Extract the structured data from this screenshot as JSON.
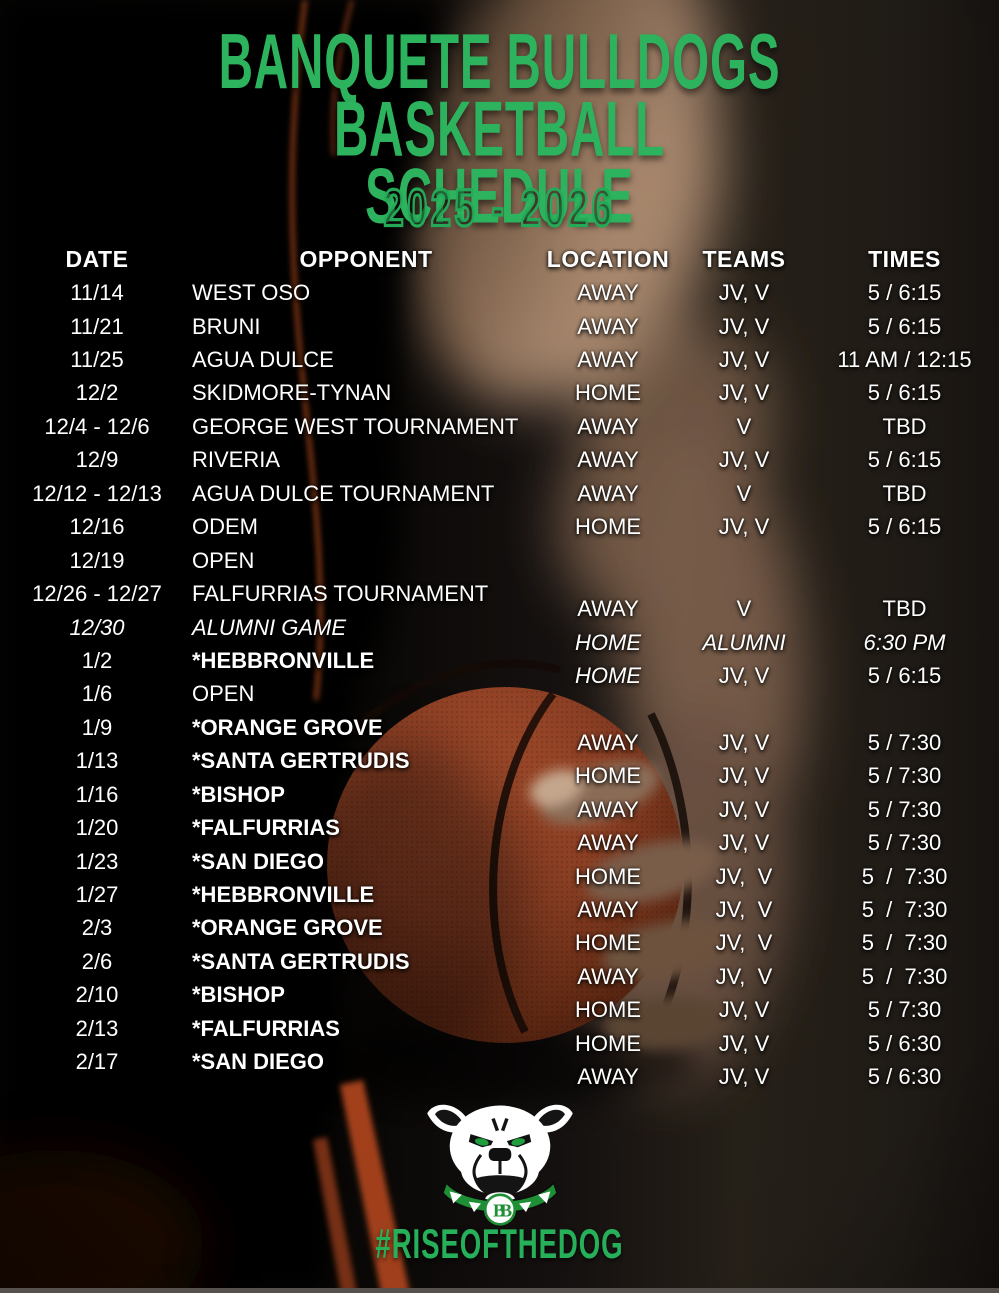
{
  "poster": {
    "title_line1": "BANQUETE BULLDOGS BASKETBALL",
    "title_line2": "SCHEDULE",
    "season": "2025 - 2026",
    "hashtag": "#RISEOFTHEDOG",
    "logo": "bulldog-mascot",
    "logo_monogram": "BB"
  },
  "colors": {
    "title_green": "#2db35e",
    "season_outline_green": "#24a957",
    "hashtag_green": "#27b05a",
    "text_white": "#ffffff",
    "background_dark": "#0a0807",
    "basketball_orange": "#8c3e22",
    "jersey_trim_orange": "#b34a1c"
  },
  "table": {
    "headers": [
      "DATE",
      "OPPONENT",
      "LOCATION",
      "TEAMS",
      "TIMES"
    ],
    "rows": [
      {
        "date": "11/14",
        "opponent": "WEST OSO",
        "location": "AWAY",
        "teams": "JV, V",
        "times": "5 / 6:15",
        "bold": false,
        "italic": false,
        "italic_location": false,
        "offset": false
      },
      {
        "date": "11/21",
        "opponent": "BRUNI",
        "location": "AWAY",
        "teams": "JV, V",
        "times": "5 / 6:15",
        "bold": false,
        "italic": false,
        "italic_location": false,
        "offset": false
      },
      {
        "date": "11/25",
        "opponent": "AGUA DULCE",
        "location": "AWAY",
        "teams": "JV, V",
        "times": "11 AM / 12:15",
        "bold": false,
        "italic": false,
        "italic_location": false,
        "offset": false
      },
      {
        "date": "12/2",
        "opponent": "SKIDMORE-TYNAN",
        "location": "HOME",
        "teams": "JV, V",
        "times": "5 / 6:15",
        "bold": false,
        "italic": false,
        "italic_location": false,
        "offset": false
      },
      {
        "date": "12/4 - 12/6",
        "opponent": "GEORGE WEST TOURNAMENT",
        "location": "AWAY",
        "teams": "V",
        "times": "TBD",
        "bold": false,
        "italic": false,
        "italic_location": false,
        "offset": false
      },
      {
        "date": "12/9",
        "opponent": "RIVERIA",
        "location": "AWAY",
        "teams": "JV, V",
        "times": "5 / 6:15",
        "bold": false,
        "italic": false,
        "italic_location": false,
        "offset": false
      },
      {
        "date": "12/12 - 12/13",
        "opponent": "AGUA DULCE TOURNAMENT",
        "location": "AWAY",
        "teams": "V",
        "times": "TBD",
        "bold": false,
        "italic": false,
        "italic_location": false,
        "offset": false
      },
      {
        "date": "12/16",
        "opponent": "ODEM",
        "location": "HOME",
        "teams": "JV, V",
        "times": "5 / 6:15",
        "bold": false,
        "italic": false,
        "italic_location": false,
        "offset": false
      },
      {
        "date": "12/19",
        "opponent": "OPEN",
        "location": "",
        "teams": "",
        "times": "",
        "bold": false,
        "italic": false,
        "italic_location": false,
        "offset": false
      },
      {
        "date": "12/26 - 12/27",
        "opponent": "FALFURRIAS TOURNAMENT",
        "location": "AWAY",
        "teams": "V",
        "times": "TBD",
        "bold": false,
        "italic": false,
        "italic_location": false,
        "offset": true
      },
      {
        "date": "12/30",
        "opponent": "ALUMNI GAME",
        "location": "HOME",
        "teams": "ALUMNI",
        "times": "6:30 PM",
        "bold": false,
        "italic": true,
        "italic_location": false,
        "offset": true
      },
      {
        "date": "1/2",
        "opponent": "*HEBBRONVILLE",
        "location": "HOME",
        "teams": "JV, V",
        "times": "5 / 6:15",
        "bold": true,
        "italic": false,
        "italic_location": true,
        "offset": true
      },
      {
        "date": "1/6",
        "opponent": "OPEN",
        "location": "",
        "teams": "",
        "times": "",
        "bold": false,
        "italic": false,
        "italic_location": false,
        "offset": false
      },
      {
        "date": "1/9",
        "opponent": "*ORANGE GROVE",
        "location": "AWAY",
        "teams": "JV, V",
        "times": "5 / 7:30",
        "bold": true,
        "italic": false,
        "italic_location": false,
        "offset": true
      },
      {
        "date": "1/13",
        "opponent": "*SANTA GERTRUDIS",
        "location": "HOME",
        "teams": "JV, V",
        "times": "5 / 7:30",
        "bold": true,
        "italic": false,
        "italic_location": false,
        "offset": true
      },
      {
        "date": "1/16",
        "opponent": "*BISHOP",
        "location": "AWAY",
        "teams": "JV, V",
        "times": "5 / 7:30",
        "bold": true,
        "italic": false,
        "italic_location": false,
        "offset": true
      },
      {
        "date": "1/20",
        "opponent": "*FALFURRIAS",
        "location": "AWAY",
        "teams": "JV, V",
        "times": "5 / 7:30",
        "bold": true,
        "italic": false,
        "italic_location": false,
        "offset": true
      },
      {
        "date": "1/23",
        "opponent": "*SAN DIEGO",
        "location": "HOME",
        "teams": "JV,  V",
        "times": "5  /  7:30",
        "bold": true,
        "italic": false,
        "italic_location": false,
        "offset": true
      },
      {
        "date": "1/27",
        "opponent": "*HEBBRONVILLE",
        "location": "AWAY",
        "teams": "JV,  V",
        "times": "5  /  7:30",
        "bold": true,
        "italic": false,
        "italic_location": false,
        "offset": true
      },
      {
        "date": "2/3",
        "opponent": "*ORANGE GROVE",
        "location": "HOME",
        "teams": "JV,  V",
        "times": "5  /  7:30",
        "bold": true,
        "italic": false,
        "italic_location": false,
        "offset": true
      },
      {
        "date": "2/6",
        "opponent": "*SANTA GERTRUDIS",
        "location": "AWAY",
        "teams": "JV,  V",
        "times": "5  /  7:30",
        "bold": true,
        "italic": false,
        "italic_location": false,
        "offset": true
      },
      {
        "date": "2/10",
        "opponent": "*BISHOP",
        "location": "HOME",
        "teams": "JV, V",
        "times": "5 / 7:30",
        "bold": true,
        "italic": false,
        "italic_location": false,
        "offset": true
      },
      {
        "date": "2/13",
        "opponent": "*FALFURRIAS",
        "location": "HOME",
        "teams": "JV, V",
        "times": "5 / 6:30",
        "bold": true,
        "italic": false,
        "italic_location": false,
        "offset": true
      },
      {
        "date": "2/17",
        "opponent": "*SAN DIEGO",
        "location": "AWAY",
        "teams": "JV, V",
        "times": "5 / 6:30",
        "bold": true,
        "italic": false,
        "italic_location": false,
        "offset": true
      }
    ]
  }
}
